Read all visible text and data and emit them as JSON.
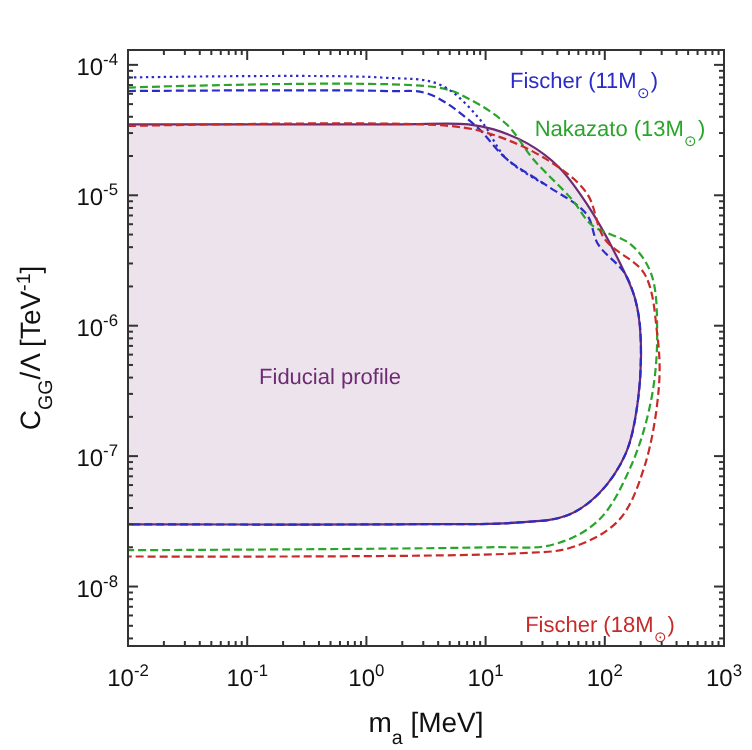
{
  "chart_data": {
    "type": "line",
    "xlabel": "m$_{a}$ [MeV]",
    "ylabel": "C$_{GG}$/Λ [TeV$^{-1}$]",
    "log": "xy",
    "grid": false,
    "xlim": [
      0.01,
      1000
    ],
    "ylim": [
      3.5e-09,
      0.00013
    ],
    "xticks": [
      {
        "value": 0.01,
        "label": "10$^{-2}$"
      },
      {
        "value": 0.1,
        "label": "10$^{-1}$"
      },
      {
        "value": 1,
        "label": "10$^{0}$"
      },
      {
        "value": 10,
        "label": "10$^{1}$"
      },
      {
        "value": 100,
        "label": "10$^{2}$"
      },
      {
        "value": 1000,
        "label": "10$^{3}$"
      }
    ],
    "yticks": [
      {
        "value": 1e-08,
        "label": "10$^{-8}$"
      },
      {
        "value": 1e-07,
        "label": "10$^{-7}$"
      },
      {
        "value": 1e-06,
        "label": "10$^{-6}$"
      },
      {
        "value": 1e-05,
        "label": "10$^{-5}$"
      },
      {
        "value": 0.0001,
        "label": "10$^{-4}$"
      }
    ],
    "series": [
      {
        "name": "Fiducial profile",
        "type": "area",
        "color": "#6e2a73",
        "line_style": "solid",
        "x": [
          0.01,
          1.75,
          7.2,
          11.7,
          22.4,
          41,
          70,
          130,
          180,
          200,
          190,
          150,
          88,
          48,
          19.3,
          1.75,
          0.01
        ],
        "values": [
          3.5e-05,
          3.5e-05,
          3.5e-05,
          3.2e-05,
          2.5e-05,
          1.65e-05,
          8.7e-06,
          3.2e-06,
          1.6e-06,
          8e-07,
          2.7e-07,
          1.05e-07,
          5.1e-08,
          3.5e-08,
          3.1e-08,
          3e-08,
          3e-08
        ]
      },
      {
        "name": "Fischer (11M$_{⊙}$)",
        "color": "#2b2bc8",
        "line_style": "dashed",
        "x": [
          0.01,
          1.5,
          3.3,
          8,
          15,
          32,
          70,
          88,
          148,
          186,
          200,
          190,
          150,
          88,
          48,
          19.3,
          1.75,
          0.01
        ],
        "values": [
          6.3e-05,
          6.3e-05,
          6e-05,
          3.5e-05,
          1.9e-05,
          1.2e-05,
          7.2e-06,
          4.2e-06,
          2.5e-06,
          1.4e-06,
          8e-07,
          2.7e-07,
          1.05e-07,
          5.1e-08,
          3.5e-08,
          3.1e-08,
          3e-08,
          3e-08
        ]
      },
      {
        "name": "Nakazato (13M$_{⊙}$)",
        "color": "#2aa52a",
        "line_style": "dashed",
        "x": [
          0.01,
          4,
          7.2,
          15,
          25,
          53,
          78,
          165,
          245,
          275,
          245,
          165,
          88,
          37,
          10.4,
          0.01
        ],
        "values": [
          6.7e-05,
          6.7e-05,
          5.5e-05,
          3.5e-05,
          1.9e-05,
          9.3e-06,
          5.9e-06,
          4.2e-06,
          2.5e-06,
          8.7e-07,
          2.7e-07,
          8.3e-08,
          3.2e-08,
          2.1e-08,
          2e-08,
          1.9e-08
        ]
      },
      {
        "color": "#2b2bc8",
        "line_style": "dotted",
        "x": [
          0.01,
          1.33,
          4.2,
          9,
          15,
          32
        ],
        "values": [
          8e-05,
          8e-05,
          7e-05,
          3.8e-05,
          1.9e-05,
          1.2e-05
        ]
      },
      {
        "name": "Fischer (18M$_{⊙}$)",
        "color": "#c82a2a",
        "line_style": "dashed",
        "x": [
          0.01,
          5,
          11.7,
          32,
          70,
          100,
          215,
          275,
          285,
          215,
          130,
          53,
          19.3,
          0.01
        ],
        "values": [
          3.4e-05,
          3.4e-05,
          2.9e-05,
          1.9e-05,
          1.05e-05,
          4.6e-06,
          2.5e-06,
          8.7e-07,
          3.5e-07,
          8.3e-08,
          3.2e-08,
          2e-08,
          1.8e-08,
          1.7e-08
        ]
      }
    ]
  }
}
